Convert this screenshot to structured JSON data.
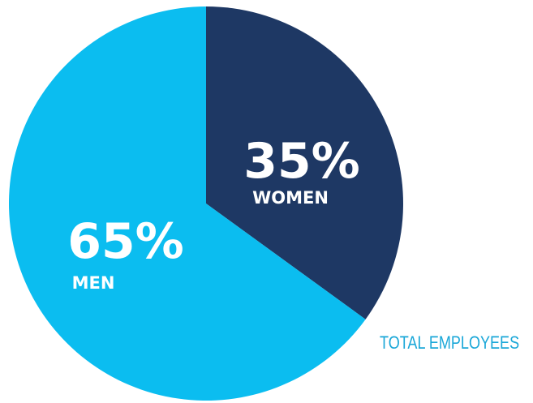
{
  "chart_data": {
    "type": "pie",
    "slices": [
      {
        "label": "WOMEN",
        "value": 35,
        "value_label": "35%",
        "color": "#1e3864"
      },
      {
        "label": "MEN",
        "value": 65,
        "value_label": "65%",
        "color": "#0bbdf0"
      }
    ],
    "start": "12 o'clock",
    "direction": "clockwise",
    "caption": "TOTAL EMPLOYEES",
    "caption_color": "#1aa7d8"
  }
}
